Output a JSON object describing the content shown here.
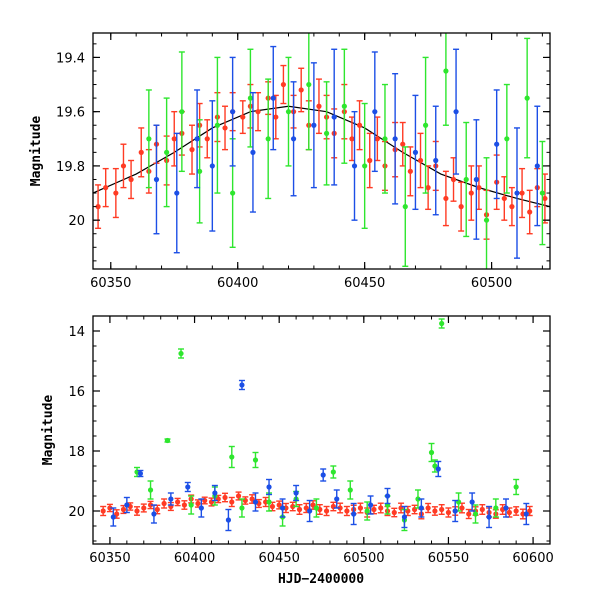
{
  "chart_data": [
    {
      "type": "scatter",
      "panel": "top",
      "title": "",
      "xlabel": "",
      "ylabel": "Magnitude",
      "xlim": [
        60343,
        60523
      ],
      "ylim": [
        20.18,
        19.31
      ],
      "y_inverted": true,
      "x_ticks": [
        60350,
        60400,
        60450,
        60500
      ],
      "y_ticks": [
        19.4,
        19.6,
        19.8,
        20
      ],
      "grid": false,
      "legend": "none",
      "colors": {
        "red": "#ff3b24",
        "green": "#2ee62e",
        "blue": "#1c4fe6",
        "model": "#000000"
      },
      "model_curve": {
        "description_values": "smooth curve through the light curve",
        "x": [
          60343,
          60360,
          60375,
          60390,
          60405,
          60420,
          60435,
          60450,
          60465,
          60480,
          60495,
          60510,
          60523
        ],
        "y": [
          19.9,
          19.83,
          19.75,
          19.66,
          19.6,
          19.58,
          19.6,
          19.66,
          19.75,
          19.83,
          19.88,
          19.92,
          19.95
        ]
      },
      "series": [
        {
          "color": "red",
          "x": [
            60345,
            60348,
            60352,
            60355,
            60358,
            60362,
            60365,
            60368,
            60372,
            60375,
            60378,
            60382,
            60385,
            60388,
            60392,
            60395,
            60398,
            60402,
            60405,
            60408,
            60412,
            60415,
            60418,
            60422,
            60425,
            60428,
            60432,
            60435,
            60438,
            60442,
            60445,
            60448,
            60452,
            60455,
            60458,
            60462,
            60465,
            60468,
            60472,
            60475,
            60478,
            60482,
            60485,
            60488,
            60492,
            60495,
            60498,
            60502,
            60505,
            60508,
            60512,
            60515,
            60518,
            60521
          ],
          "y": [
            19.95,
            19.88,
            19.9,
            19.8,
            19.85,
            19.75,
            19.82,
            19.72,
            19.78,
            19.7,
            19.68,
            19.74,
            19.65,
            19.7,
            19.62,
            19.66,
            19.6,
            19.62,
            19.58,
            19.6,
            19.55,
            19.62,
            19.5,
            19.6,
            19.52,
            19.65,
            19.58,
            19.62,
            19.68,
            19.6,
            19.7,
            19.65,
            19.78,
            19.7,
            19.8,
            19.74,
            19.72,
            19.82,
            19.78,
            19.88,
            19.8,
            19.92,
            19.85,
            19.95,
            19.9,
            19.88,
            19.98,
            19.86,
            19.92,
            19.95,
            19.9,
            19.97,
            19.88,
            19.92
          ],
          "err": [
            0.08,
            0.07,
            0.09,
            0.08,
            0.07,
            0.09,
            0.08,
            0.07,
            0.09,
            0.1,
            0.08,
            0.09,
            0.08,
            0.07,
            0.09,
            0.08,
            0.07,
            0.06,
            0.08,
            0.07,
            0.06,
            0.08,
            0.07,
            0.06,
            0.08,
            0.09,
            0.1,
            0.08,
            0.09,
            0.1,
            0.08,
            0.09,
            0.1,
            0.08,
            0.09,
            0.1,
            0.08,
            0.09,
            0.1,
            0.08,
            0.09,
            0.1,
            0.08,
            0.09,
            0.1,
            0.08,
            0.09,
            0.1,
            0.08,
            0.07,
            0.09,
            0.08,
            0.07,
            0.09
          ]
        },
        {
          "color": "green",
          "x": [
            60365,
            60372,
            60378,
            60385,
            60392,
            60398,
            60405,
            60412,
            60420,
            60428,
            60435,
            60442,
            60450,
            60458,
            60466,
            60474,
            60482,
            60490,
            60498,
            60506,
            60514,
            60520
          ],
          "y": [
            19.7,
            19.75,
            19.6,
            19.82,
            19.65,
            19.9,
            19.55,
            19.7,
            19.6,
            19.5,
            19.68,
            19.58,
            19.8,
            19.7,
            19.95,
            19.65,
            19.45,
            19.85,
            20.0,
            19.7,
            19.55,
            19.9
          ],
          "err": [
            0.18,
            0.2,
            0.22,
            0.19,
            0.25,
            0.2,
            0.18,
            0.22,
            0.2,
            0.24,
            0.19,
            0.21,
            0.23,
            0.2,
            0.22,
            0.25,
            0.2,
            0.21,
            0.23,
            0.2,
            0.22,
            0.19
          ]
        },
        {
          "color": "blue",
          "x": [
            60368,
            60376,
            60384,
            60390,
            60398,
            60406,
            60414,
            60422,
            60430,
            60438,
            60446,
            60454,
            60462,
            60470,
            60478,
            60486,
            60494,
            60502,
            60510,
            60518
          ],
          "y": [
            19.85,
            19.9,
            19.7,
            19.8,
            19.6,
            19.75,
            19.55,
            19.7,
            19.65,
            19.62,
            19.8,
            19.6,
            19.7,
            19.75,
            19.78,
            19.6,
            19.85,
            19.72,
            19.9,
            19.8
          ],
          "err": [
            0.2,
            0.22,
            0.18,
            0.24,
            0.2,
            0.22,
            0.19,
            0.21,
            0.23,
            0.25,
            0.2,
            0.22,
            0.24,
            0.21,
            0.2,
            0.23,
            0.22,
            0.2,
            0.24,
            0.22
          ]
        }
      ]
    },
    {
      "type": "scatter",
      "panel": "bottom",
      "title": "",
      "xlabel": "HJD−2400000",
      "ylabel": "Magnitude",
      "xlim": [
        60340,
        60610
      ],
      "ylim": [
        21.1,
        13.5
      ],
      "y_inverted": true,
      "x_ticks": [
        60350,
        60400,
        60450,
        60500,
        60550,
        60600
      ],
      "y_ticks": [
        14,
        16,
        18,
        20
      ],
      "grid": false,
      "legend": "none",
      "colors": {
        "red": "#ff3b24",
        "green": "#2ee62e",
        "blue": "#1c4fe6"
      },
      "series": [
        {
          "color": "red",
          "x": [
            60346,
            60350,
            60354,
            60358,
            60362,
            60366,
            60370,
            60374,
            60378,
            60382,
            60386,
            60390,
            60394,
            60398,
            60402,
            60406,
            60410,
            60414,
            60418,
            60422,
            60426,
            60430,
            60434,
            60438,
            60442,
            60446,
            60450,
            60454,
            60458,
            60462,
            60466,
            60470,
            60474,
            60478,
            60482,
            60486,
            60490,
            60494,
            60498,
            60502,
            60506,
            60510,
            60514,
            60518,
            60522,
            60526,
            60530,
            60534,
            60538,
            60542,
            60546,
            60550,
            60554,
            60558,
            60562,
            60566,
            60570,
            60574,
            60578,
            60582,
            60586,
            60590,
            60594,
            60598
          ],
          "y": [
            20.0,
            19.9,
            20.1,
            19.95,
            19.85,
            20.0,
            19.9,
            19.8,
            19.95,
            19.75,
            19.85,
            19.7,
            19.8,
            19.6,
            19.75,
            19.65,
            19.7,
            19.6,
            19.55,
            19.7,
            19.5,
            19.65,
            19.6,
            19.75,
            19.7,
            19.85,
            19.8,
            19.9,
            19.85,
            19.95,
            19.9,
            19.8,
            19.95,
            20.0,
            19.85,
            19.9,
            20.0,
            19.95,
            19.9,
            20.05,
            19.95,
            19.9,
            20.0,
            20.05,
            19.9,
            20.0,
            19.95,
            20.1,
            19.9,
            20.0,
            19.95,
            20.05,
            20.0,
            19.9,
            20.1,
            20.0,
            19.95,
            20.05,
            20.1,
            19.95,
            20.05,
            20.0,
            20.1,
            20.0
          ],
          "err": [
            0.15,
            0.12,
            0.14,
            0.13,
            0.12,
            0.14,
            0.13,
            0.12,
            0.14,
            0.15,
            0.13,
            0.12,
            0.14,
            0.13,
            0.12,
            0.11,
            0.13,
            0.12,
            0.14,
            0.15,
            0.13,
            0.12,
            0.14,
            0.13,
            0.15,
            0.14,
            0.13,
            0.15,
            0.14,
            0.16,
            0.15,
            0.14,
            0.16,
            0.15,
            0.14,
            0.16,
            0.15,
            0.14,
            0.16,
            0.15,
            0.14,
            0.16,
            0.15,
            0.14,
            0.16,
            0.15,
            0.14,
            0.16,
            0.15,
            0.14,
            0.16,
            0.15,
            0.14,
            0.16,
            0.15,
            0.14,
            0.16,
            0.15,
            0.14,
            0.16,
            0.15,
            0.14,
            0.16,
            0.15
          ]
        },
        {
          "color": "green",
          "x": [
            60366,
            60374,
            60384,
            60392,
            60398,
            60412,
            60422,
            60428,
            60436,
            60444,
            60452,
            60460,
            60472,
            60482,
            60492,
            60502,
            60514,
            60524,
            60532,
            60540,
            60542,
            60546,
            60556,
            60566,
            60578,
            60590
          ],
          "y": [
            18.7,
            19.3,
            17.65,
            14.75,
            19.8,
            19.5,
            18.2,
            19.9,
            18.3,
            19.7,
            20.2,
            19.6,
            19.9,
            18.7,
            19.3,
            20.0,
            19.8,
            20.3,
            19.6,
            18.05,
            18.5,
            13.75,
            19.7,
            20.1,
            19.9,
            19.2
          ],
          "err": [
            0.15,
            0.3,
            0.05,
            0.15,
            0.3,
            0.3,
            0.35,
            0.3,
            0.25,
            0.3,
            0.3,
            0.25,
            0.3,
            0.2,
            0.3,
            0.3,
            0.3,
            0.35,
            0.3,
            0.3,
            0.2,
            0.15,
            0.3,
            0.3,
            0.3,
            0.25
          ]
        },
        {
          "color": "blue",
          "x": [
            60352,
            60360,
            60368,
            60376,
            60386,
            60396,
            60404,
            60412,
            60420,
            60428,
            60436,
            60444,
            60452,
            60460,
            60468,
            60476,
            60484,
            60494,
            60504,
            60514,
            60524,
            60534,
            60544,
            60554,
            60564,
            60574,
            60584,
            60596
          ],
          "y": [
            20.2,
            19.8,
            18.75,
            20.1,
            19.6,
            19.2,
            19.9,
            19.4,
            20.3,
            15.8,
            19.7,
            19.2,
            19.9,
            19.4,
            20.0,
            18.8,
            19.6,
            20.1,
            19.8,
            19.5,
            20.2,
            19.9,
            18.6,
            20.0,
            19.7,
            20.2,
            19.9,
            20.1
          ],
          "err": [
            0.3,
            0.25,
            0.1,
            0.3,
            0.2,
            0.15,
            0.3,
            0.25,
            0.35,
            0.15,
            0.3,
            0.25,
            0.3,
            0.25,
            0.35,
            0.2,
            0.3,
            0.35,
            0.3,
            0.25,
            0.35,
            0.3,
            0.25,
            0.35,
            0.3,
            0.35,
            0.3,
            0.35
          ]
        }
      ]
    }
  ],
  "figure": {
    "top_ylabel": "Magnitude",
    "bottom_ylabel": "Magnitude",
    "bottom_xlabel": "HJD−2400000"
  }
}
